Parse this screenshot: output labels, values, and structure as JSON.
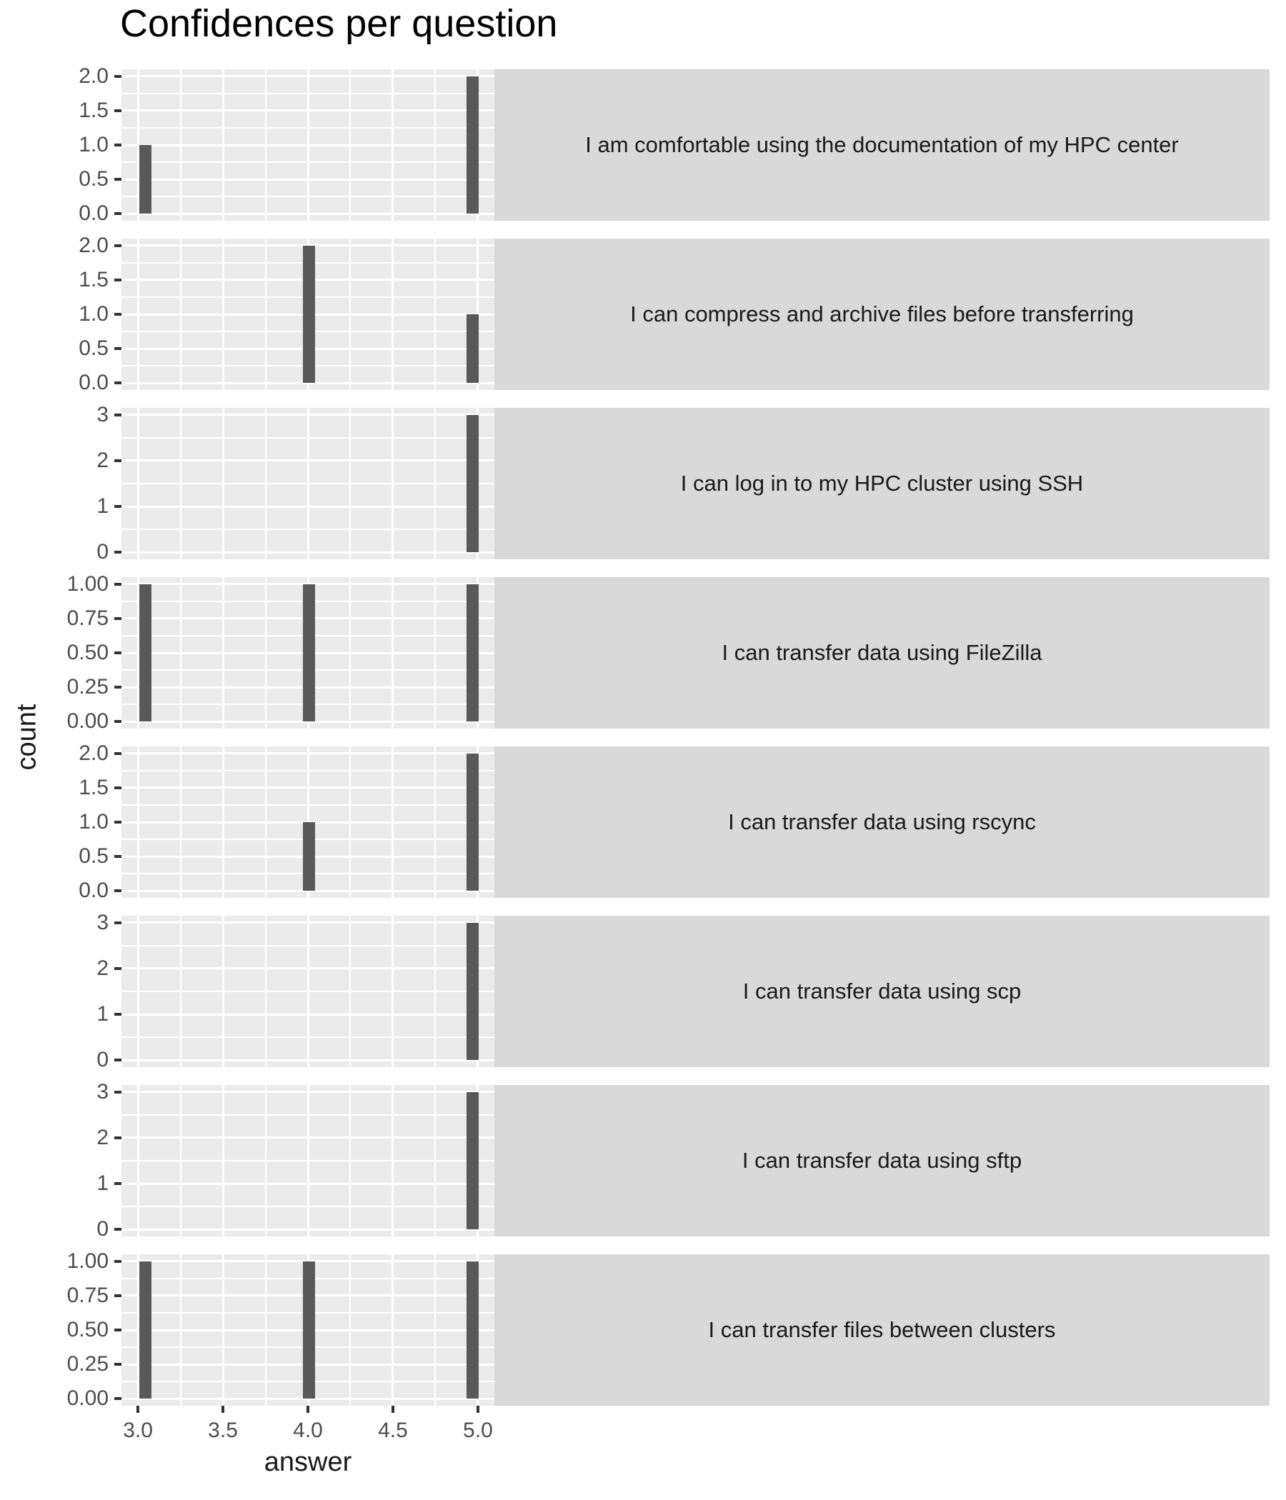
{
  "chart_data": {
    "type": "bar",
    "title": "Confidences per question",
    "xlabel": "answer",
    "ylabel": "count",
    "x_range": [
      2.903,
      5.097
    ],
    "x_ticks": [
      {
        "value": 3.0,
        "label": "3.0"
      },
      {
        "value": 3.5,
        "label": "3.5"
      },
      {
        "value": 4.0,
        "label": "4.0"
      },
      {
        "value": 4.5,
        "label": "4.5"
      },
      {
        "value": 5.0,
        "label": "5.0"
      }
    ],
    "legend": "none",
    "grid": "on",
    "facets": [
      {
        "label": "I am comfortable using the documentation of my HPC center",
        "y_max": 2,
        "y_ticks": [
          {
            "value": 0.0,
            "label": "0.0"
          },
          {
            "value": 0.5,
            "label": "0.5"
          },
          {
            "value": 1.0,
            "label": "1.0"
          },
          {
            "value": 1.5,
            "label": "1.5"
          },
          {
            "value": 2.0,
            "label": "2.0"
          }
        ],
        "bars": [
          {
            "answer": 3,
            "count": 1
          },
          {
            "answer": 5,
            "count": 2
          }
        ]
      },
      {
        "label": "I can compress and archive files before transferring",
        "y_max": 2,
        "y_ticks": [
          {
            "value": 0.0,
            "label": "0.0"
          },
          {
            "value": 0.5,
            "label": "0.5"
          },
          {
            "value": 1.0,
            "label": "1.0"
          },
          {
            "value": 1.5,
            "label": "1.5"
          },
          {
            "value": 2.0,
            "label": "2.0"
          }
        ],
        "bars": [
          {
            "answer": 4,
            "count": 2
          },
          {
            "answer": 5,
            "count": 1
          }
        ]
      },
      {
        "label": "I can log in to my HPC cluster using SSH",
        "y_max": 3,
        "y_ticks": [
          {
            "value": 0,
            "label": "0"
          },
          {
            "value": 1,
            "label": "1"
          },
          {
            "value": 2,
            "label": "2"
          },
          {
            "value": 3,
            "label": "3"
          }
        ],
        "bars": [
          {
            "answer": 5,
            "count": 3
          }
        ]
      },
      {
        "label": "I can transfer data using FileZilla",
        "y_max": 1,
        "y_ticks": [
          {
            "value": 0.0,
            "label": "0.00"
          },
          {
            "value": 0.25,
            "label": "0.25"
          },
          {
            "value": 0.5,
            "label": "0.50"
          },
          {
            "value": 0.75,
            "label": "0.75"
          },
          {
            "value": 1.0,
            "label": "1.00"
          }
        ],
        "bars": [
          {
            "answer": 3,
            "count": 1
          },
          {
            "answer": 4,
            "count": 1
          },
          {
            "answer": 5,
            "count": 1
          }
        ]
      },
      {
        "label": "I can transfer data using rscync",
        "y_max": 2,
        "y_ticks": [
          {
            "value": 0.0,
            "label": "0.0"
          },
          {
            "value": 0.5,
            "label": "0.5"
          },
          {
            "value": 1.0,
            "label": "1.0"
          },
          {
            "value": 1.5,
            "label": "1.5"
          },
          {
            "value": 2.0,
            "label": "2.0"
          }
        ],
        "bars": [
          {
            "answer": 4,
            "count": 1
          },
          {
            "answer": 5,
            "count": 2
          }
        ]
      },
      {
        "label": "I can transfer data using scp",
        "y_max": 3,
        "y_ticks": [
          {
            "value": 0,
            "label": "0"
          },
          {
            "value": 1,
            "label": "1"
          },
          {
            "value": 2,
            "label": "2"
          },
          {
            "value": 3,
            "label": "3"
          }
        ],
        "bars": [
          {
            "answer": 5,
            "count": 3
          }
        ]
      },
      {
        "label": "I can transfer data using sftp",
        "y_max": 3,
        "y_ticks": [
          {
            "value": 0,
            "label": "0"
          },
          {
            "value": 1,
            "label": "1"
          },
          {
            "value": 2,
            "label": "2"
          },
          {
            "value": 3,
            "label": "3"
          }
        ],
        "bars": [
          {
            "answer": 5,
            "count": 3
          }
        ]
      },
      {
        "label": "I can transfer files between clusters",
        "y_max": 1,
        "y_ticks": [
          {
            "value": 0.0,
            "label": "0.00"
          },
          {
            "value": 0.25,
            "label": "0.25"
          },
          {
            "value": 0.5,
            "label": "0.50"
          },
          {
            "value": 0.75,
            "label": "0.75"
          },
          {
            "value": 1.0,
            "label": "1.00"
          }
        ],
        "bars": [
          {
            "answer": 3,
            "count": 1
          },
          {
            "answer": 4,
            "count": 1
          },
          {
            "answer": 5,
            "count": 1
          }
        ]
      }
    ],
    "colors": {
      "panel_bg": "#EBEBEB",
      "strip_bg": "#D9D9D9",
      "bar": "#595959",
      "grid": "#FFFFFF",
      "tick_label": "#4D4D4D",
      "tick_mark": "#333333",
      "text": "#1A1A1A"
    }
  }
}
